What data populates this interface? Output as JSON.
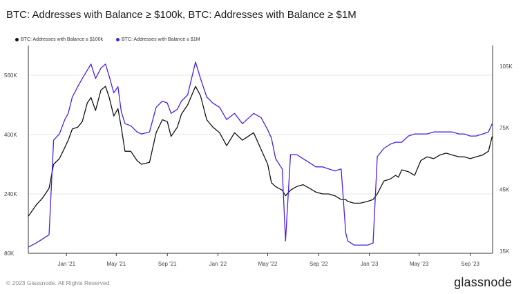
{
  "chart_data": {
    "type": "line",
    "title": "BTC: Addresses with Balance ≥ $100k, BTC: Addresses with Balance ≥ $1M",
    "x_ticks": [
      "Jan '21",
      "May '21",
      "Sep '21",
      "Jan '22",
      "May '22",
      "Sep '22",
      "Jan '23",
      "May '23",
      "Sep '23"
    ],
    "y_left": {
      "ticks": [
        "80K",
        "240K",
        "400K",
        "560K"
      ],
      "tick_values": [
        80000,
        240000,
        400000,
        560000
      ],
      "range": [
        80000,
        640000
      ]
    },
    "y_right": {
      "ticks": [
        "15K",
        "45K",
        "75K",
        "105K"
      ],
      "tick_values": [
        15000,
        45000,
        75000,
        105000
      ],
      "range": [
        14000,
        115000
      ]
    },
    "grid": true,
    "legend_position": "top-left",
    "series": [
      {
        "name": "BTC: Addresses with Balance ≥ $100k",
        "axis": "left",
        "color": "#111111",
        "x": [
          "2020-10-01",
          "2020-10-20",
          "2020-11-05",
          "2020-11-20",
          "2020-12-01",
          "2020-12-15",
          "2020-12-28",
          "2021-01-05",
          "2021-01-15",
          "2021-01-28",
          "2021-02-08",
          "2021-02-20",
          "2021-03-01",
          "2021-03-12",
          "2021-03-25",
          "2021-04-05",
          "2021-04-14",
          "2021-04-25",
          "2021-05-05",
          "2021-05-13",
          "2021-05-22",
          "2021-06-05",
          "2021-06-20",
          "2021-07-01",
          "2021-07-20",
          "2021-08-05",
          "2021-08-20",
          "2021-09-01",
          "2021-09-10",
          "2021-09-25",
          "2021-10-05",
          "2021-10-20",
          "2021-11-08",
          "2021-11-20",
          "2021-12-05",
          "2021-12-20",
          "2022-01-05",
          "2022-01-22",
          "2022-02-10",
          "2022-03-01",
          "2022-03-28",
          "2022-04-15",
          "2022-05-01",
          "2022-05-10",
          "2022-05-20",
          "2022-06-05",
          "2022-06-13",
          "2022-06-25",
          "2022-07-10",
          "2022-07-25",
          "2022-08-10",
          "2022-08-25",
          "2022-09-10",
          "2022-09-25",
          "2022-10-10",
          "2022-10-25",
          "2022-11-05",
          "2022-11-10",
          "2022-11-25",
          "2022-12-10",
          "2022-12-28",
          "2023-01-10",
          "2023-01-20",
          "2023-02-05",
          "2023-02-20",
          "2023-03-05",
          "2023-03-12",
          "2023-03-20",
          "2023-04-05",
          "2023-04-20",
          "2023-05-05",
          "2023-05-20",
          "2023-06-05",
          "2023-06-20",
          "2023-07-05",
          "2023-07-20",
          "2023-08-05",
          "2023-08-18",
          "2023-09-01",
          "2023-09-15",
          "2023-10-01",
          "2023-10-15",
          "2023-10-24"
        ],
        "values": [
          180000,
          210000,
          230000,
          255000,
          320000,
          335000,
          365000,
          385000,
          415000,
          420000,
          435000,
          485000,
          500000,
          465000,
          520000,
          530000,
          500000,
          450000,
          470000,
          420000,
          355000,
          355000,
          330000,
          320000,
          325000,
          405000,
          440000,
          435000,
          395000,
          420000,
          455000,
          480000,
          530000,
          505000,
          440000,
          420000,
          405000,
          370000,
          405000,
          385000,
          405000,
          360000,
          320000,
          270000,
          260000,
          250000,
          235000,
          250000,
          260000,
          265000,
          255000,
          245000,
          240000,
          240000,
          235000,
          225000,
          225000,
          220000,
          215000,
          215000,
          220000,
          225000,
          240000,
          275000,
          280000,
          290000,
          285000,
          305000,
          300000,
          290000,
          330000,
          340000,
          335000,
          345000,
          350000,
          345000,
          340000,
          340000,
          335000,
          340000,
          345000,
          355000,
          395000
        ]
      },
      {
        "name": "BTC: Addresses with Balance ≥ $1M",
        "axis": "right",
        "color": "#4a1fe6",
        "x": [
          "2020-10-01",
          "2020-10-20",
          "2020-11-05",
          "2020-11-20",
          "2020-12-01",
          "2020-12-15",
          "2020-12-28",
          "2021-01-05",
          "2021-01-15",
          "2021-01-28",
          "2021-02-08",
          "2021-02-20",
          "2021-03-01",
          "2021-03-12",
          "2021-03-25",
          "2021-04-05",
          "2021-04-14",
          "2021-04-25",
          "2021-05-05",
          "2021-05-13",
          "2021-05-22",
          "2021-06-05",
          "2021-06-20",
          "2021-07-01",
          "2021-07-20",
          "2021-08-05",
          "2021-08-20",
          "2021-09-01",
          "2021-09-10",
          "2021-09-25",
          "2021-10-05",
          "2021-10-20",
          "2021-11-08",
          "2021-11-20",
          "2021-12-05",
          "2021-12-20",
          "2022-01-05",
          "2022-01-22",
          "2022-02-10",
          "2022-03-01",
          "2022-03-28",
          "2022-04-15",
          "2022-05-01",
          "2022-05-10",
          "2022-05-20",
          "2022-06-05",
          "2022-06-13",
          "2022-06-25",
          "2022-07-10",
          "2022-07-25",
          "2022-08-10",
          "2022-08-25",
          "2022-09-10",
          "2022-09-25",
          "2022-10-10",
          "2022-10-25",
          "2022-11-05",
          "2022-11-10",
          "2022-11-25",
          "2022-12-10",
          "2022-12-28",
          "2023-01-10",
          "2023-01-20",
          "2023-02-05",
          "2023-02-20",
          "2023-03-05",
          "2023-03-12",
          "2023-03-20",
          "2023-04-05",
          "2023-04-20",
          "2023-05-05",
          "2023-05-20",
          "2023-06-05",
          "2023-06-20",
          "2023-07-05",
          "2023-07-20",
          "2023-08-05",
          "2023-08-18",
          "2023-09-01",
          "2023-09-15",
          "2023-10-01",
          "2023-10-15",
          "2023-10-24"
        ],
        "values": [
          17000,
          19000,
          21000,
          23000,
          69000,
          72000,
          79000,
          82000,
          90000,
          95000,
          99000,
          103000,
          106000,
          99000,
          104000,
          106000,
          100000,
          92000,
          95000,
          83000,
          77000,
          76000,
          73000,
          72000,
          73000,
          85000,
          88000,
          87000,
          82000,
          84000,
          88000,
          91000,
          107000,
          99000,
          90000,
          87000,
          85000,
          79000,
          82000,
          77000,
          82000,
          80000,
          74000,
          70000,
          60000,
          55000,
          20000,
          62000,
          62000,
          60000,
          58000,
          56000,
          56000,
          55000,
          54000,
          55000,
          24000,
          20000,
          18000,
          18000,
          18000,
          19000,
          61000,
          65000,
          67000,
          68000,
          68000,
          68000,
          71000,
          72000,
          72000,
          72000,
          73000,
          73000,
          73000,
          73000,
          72000,
          72000,
          71000,
          71000,
          72000,
          73000,
          77000
        ]
      }
    ]
  },
  "footer": {
    "copyright": "© 2023 Glassnode. All Rights Reserved.",
    "brand": "glassnode"
  },
  "colors": {
    "series_100k": "#111111",
    "series_1m": "#4a1fe6",
    "grid": "#e6e6e6"
  }
}
